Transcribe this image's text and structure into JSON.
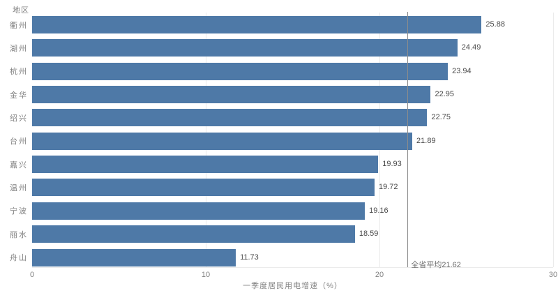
{
  "chart_data": {
    "type": "bar",
    "orientation": "horizontal",
    "title": "",
    "ylabel": "地区",
    "xlabel": "一季度居民用电增速（%）",
    "categories": [
      "衢州",
      "湖州",
      "杭州",
      "金华",
      "绍兴",
      "台州",
      "嘉兴",
      "温州",
      "宁波",
      "丽水",
      "舟山"
    ],
    "values": [
      25.88,
      24.49,
      23.94,
      22.95,
      22.75,
      21.89,
      19.93,
      19.72,
      19.16,
      18.59,
      11.73
    ],
    "xlim": [
      0,
      30
    ],
    "xticks": [
      0,
      10,
      20,
      30
    ],
    "reference_line": {
      "value": 21.62,
      "label": "全省平均21.62"
    },
    "legend": "none",
    "grid": "light vertical gridlines at x ticks, light baseline"
  },
  "colors": {
    "bar": "#4e79a7",
    "value_label": "#4b4b4b",
    "axis_text": "#828282",
    "reference_line": "#8c8c8c",
    "ref_label_text": "#6e6e6e",
    "gridline": "#ebebeb"
  }
}
